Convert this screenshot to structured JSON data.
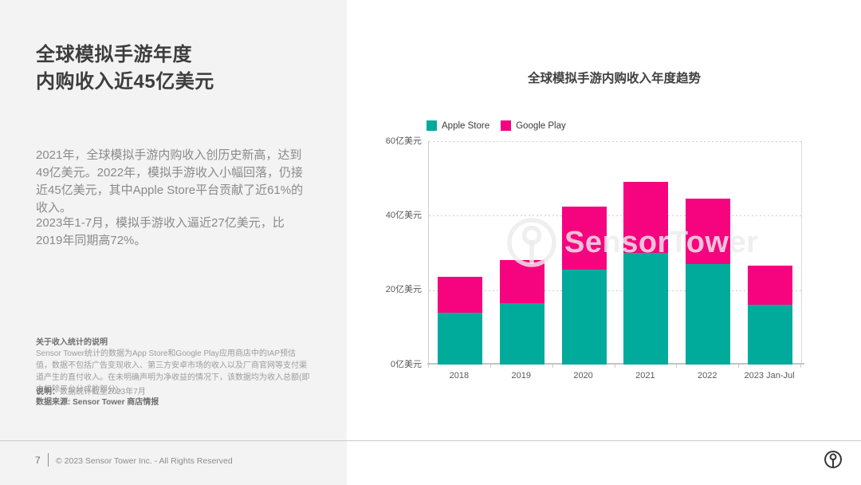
{
  "left_panel": {
    "title_line1": "全球模拟手游年度",
    "title_line2": "内购收入近45亿美元",
    "paragraph1": "2021年，全球模拟手游内购收入创历史新高，达到49亿美元。2022年，模拟手游收入小幅回落，仍接近45亿美元，其中Apple Store平台贡献了近61%的收入。",
    "paragraph2": "2023年1-7月，模拟手游收入逼近27亿美元，比2019年同期高72%。",
    "footnote_title": "关于收入统计的说明",
    "footnote_body": "Sensor Tower统计的数据为App Store和Google Play应用商店中的IAP预估值，数据不包括广告变现收入、第三方安卓市场的收入以及厂商官网等支付渠道产生的直付收入。在未明确声明为净收益的情况下，该数据均为收入总额(即未扣除平台分成的部分)。",
    "note_label": "说明：",
    "note_text": "数据统计截至2023年7月",
    "source_text": "数据来源: Sensor Tower 商店情报"
  },
  "chart_data": {
    "type": "bar",
    "stacked": true,
    "title": "全球模拟手游内购收入年度趋势",
    "categories": [
      "2018",
      "2019",
      "2020",
      "2021",
      "2022",
      "2023 Jan-Jul"
    ],
    "series": [
      {
        "name": "Apple Store",
        "color": "#00AB9B",
        "values": [
          14,
          16.5,
          25.5,
          30,
          27,
          16
        ]
      },
      {
        "name": "Google Play",
        "color": "#F60380",
        "values": [
          9.5,
          11.5,
          17,
          19,
          17.5,
          10.5
        ]
      }
    ],
    "totals": [
      23.5,
      28,
      42.5,
      49,
      44.5,
      26.5
    ],
    "y_unit": "亿美元",
    "ylim": [
      0,
      60
    ],
    "yticks": [
      60,
      40,
      20,
      0
    ],
    "ytick_labels": [
      "60亿美元",
      "40亿美元",
      "20亿美元",
      "0亿美元"
    ],
    "legend_position": "top-left",
    "grid": "dotted-horizontal"
  },
  "watermark": {
    "text": "SensorTower"
  },
  "footer": {
    "page_number": "7",
    "copyright": "© 2023 Sensor Tower Inc. - All Rights Reserved"
  },
  "colors": {
    "apple": "#00AB9B",
    "google": "#F60380",
    "left_panel_bg": "#f3f3f3",
    "title_text": "#3d3d3d",
    "body_text": "#8a8a8a"
  }
}
